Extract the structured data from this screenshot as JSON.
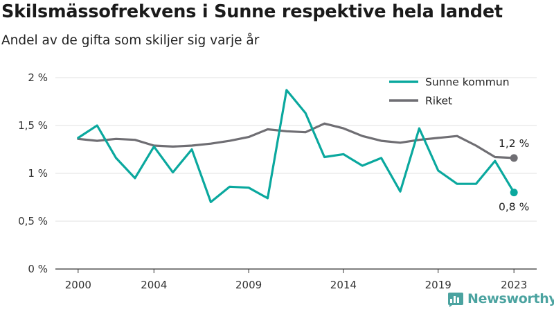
{
  "header": {
    "title": "Skilsmässofrekvens i Sunne respektive hela landet",
    "subtitle": "Andel av de gifta som skiljer sig varje år"
  },
  "brand": {
    "name": "Newsworthy",
    "icon": "bar-chart-logo-icon",
    "color": "#4ba3a0"
  },
  "chart_data": {
    "type": "line",
    "x": [
      2000,
      2001,
      2002,
      2003,
      2004,
      2005,
      2006,
      2007,
      2008,
      2009,
      2010,
      2011,
      2012,
      2013,
      2014,
      2015,
      2016,
      2017,
      2018,
      2019,
      2020,
      2021,
      2022,
      2023
    ],
    "x_ticks": [
      2000,
      2004,
      2009,
      2014,
      2019,
      2023
    ],
    "x_tick_labels": [
      "2000",
      "2004",
      "2009",
      "2014",
      "2019",
      "2023"
    ],
    "ylim": [
      0,
      2
    ],
    "y_ticks": [
      0,
      0.5,
      1,
      1.5,
      2
    ],
    "y_tick_labels": [
      "0 %",
      "0,5 %",
      "1 %",
      "1,5 %",
      "2 %"
    ],
    "grid": true,
    "legend_position": "top-right",
    "series": [
      {
        "name": "Sunne kommun",
        "color": "#0aa89e",
        "values": [
          1.37,
          1.5,
          1.16,
          0.95,
          1.28,
          1.01,
          1.25,
          0.7,
          0.86,
          0.85,
          0.74,
          1.87,
          1.63,
          1.17,
          1.2,
          1.08,
          1.16,
          0.81,
          1.47,
          1.03,
          0.89,
          0.89,
          1.13,
          0.8
        ],
        "end_label": "0,8 %"
      },
      {
        "name": "Riket",
        "color": "#6f6e73",
        "values": [
          1.36,
          1.34,
          1.36,
          1.35,
          1.29,
          1.28,
          1.29,
          1.31,
          1.34,
          1.38,
          1.46,
          1.44,
          1.43,
          1.52,
          1.47,
          1.39,
          1.34,
          1.32,
          1.35,
          1.37,
          1.39,
          1.29,
          1.17,
          1.16
        ],
        "end_label": "1,2 %"
      }
    ]
  }
}
